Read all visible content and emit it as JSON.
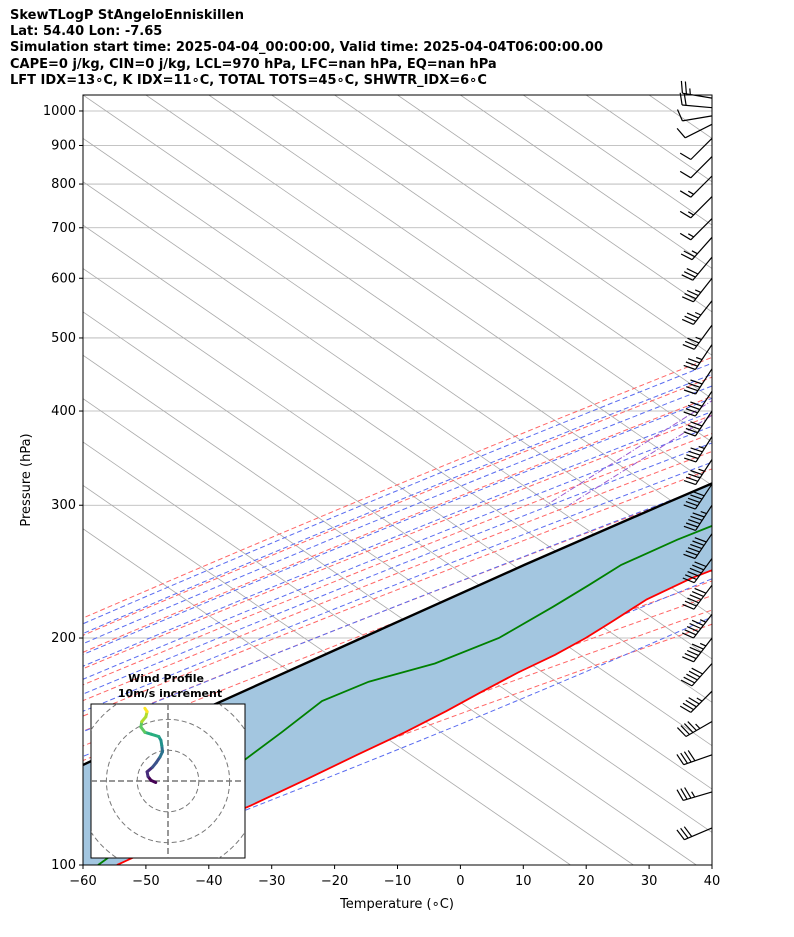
{
  "header": {
    "lines": [
      "SkewTLogP StAngeloEnniskillen",
      "Lat: 54.40   Lon: -7.65",
      "Simulation start time: 2025-04-04_00:00:00, Valid time: 2025-04-04T06:00:00.00",
      "CAPE=0 j/kg, CIN=0 j/kg, LCL=970 hPa, LFC=nan hPa, EQ=nan hPa",
      "LFT IDX=13∘C, K IDX=11∘C, TOTAL TOTS=45∘C, SHWTR_IDX=6∘C"
    ]
  },
  "chart_data": {
    "type": "skewt",
    "xlabel": "Temperature (∘C)",
    "ylabel": "Pressure (hPa)",
    "xlim": [
      -60,
      40
    ],
    "ylim": [
      1050,
      100
    ],
    "x_ticks": [
      "−60",
      "−50",
      "−40",
      "−30",
      "−20",
      "−10",
      "0",
      "10",
      "20",
      "30",
      "40"
    ],
    "y_ticks": [
      {
        "p": 100,
        "label": "100"
      },
      {
        "p": 200,
        "label": "200"
      },
      {
        "p": 300,
        "label": "300"
      },
      {
        "p": 400,
        "label": "400"
      },
      {
        "p": 500,
        "label": "500"
      },
      {
        "p": 600,
        "label": "600"
      },
      {
        "p": 700,
        "label": "700"
      },
      {
        "p": 800,
        "label": "800"
      },
      {
        "p": 900,
        "label": "900"
      },
      {
        "p": 1000,
        "label": "1000"
      }
    ],
    "colors": {
      "temperature": "#ff0000",
      "dewpoint": "#008000",
      "parcel": "#000000",
      "cape_fill": "#a3c6e0",
      "dry_adiabat": "#ff6666",
      "moist_adiabat": "#5a6cf0",
      "mixing_ratio": "#9b59d0",
      "isotherm": "#aaaaaa"
    },
    "temperature": [
      {
        "p": 1040,
        "t": 8.2
      },
      {
        "p": 1000,
        "t": 9.0
      },
      {
        "p": 970,
        "t": 10.4
      },
      {
        "p": 925,
        "t": 10.2
      },
      {
        "p": 850,
        "t": 9.2
      },
      {
        "p": 800,
        "t": 7.7
      },
      {
        "p": 750,
        "t": 6.0
      },
      {
        "p": 700,
        "t": 4.3
      },
      {
        "p": 650,
        "t": 2.9
      },
      {
        "p": 600,
        "t": 0.5
      },
      {
        "p": 550,
        "t": -2.3
      },
      {
        "p": 500,
        "t": -5.4
      },
      {
        "p": 450,
        "t": -8.8
      },
      {
        "p": 400,
        "t": -12.6
      },
      {
        "p": 350,
        "t": -17.1
      },
      {
        "p": 300,
        "t": -22.7
      },
      {
        "p": 280,
        "t": -25.8
      },
      {
        "p": 265,
        "t": -28.4
      },
      {
        "p": 250,
        "t": -27.0
      },
      {
        "p": 240,
        "t": -29.4
      },
      {
        "p": 225,
        "t": -31.6
      },
      {
        "p": 210,
        "t": -32.0
      },
      {
        "p": 200,
        "t": -32.4
      },
      {
        "p": 190,
        "t": -33.4
      },
      {
        "p": 180,
        "t": -35.2
      },
      {
        "p": 170,
        "t": -36.5
      },
      {
        "p": 160,
        "t": -37.7
      },
      {
        "p": 150,
        "t": -39.4
      },
      {
        "p": 140,
        "t": -41.8
      },
      {
        "p": 130,
        "t": -44.2
      },
      {
        "p": 120,
        "t": -47.0
      },
      {
        "p": 110,
        "t": -51.0
      },
      {
        "p": 100,
        "t": -54.6
      }
    ],
    "dewpoint": [
      {
        "p": 1010,
        "t": 5.8
      },
      {
        "p": 1000,
        "t": 6.6
      },
      {
        "p": 975,
        "t": 8.1
      },
      {
        "p": 950,
        "t": 9.2
      },
      {
        "p": 925,
        "t": 9.6
      },
      {
        "p": 900,
        "t": 8.8
      },
      {
        "p": 860,
        "t": 5.4
      },
      {
        "p": 820,
        "t": 0.1
      },
      {
        "p": 775,
        "t": -3.5
      },
      {
        "p": 700,
        "t": -9.2
      },
      {
        "p": 650,
        "t": -14.4
      },
      {
        "p": 600,
        "t": -11.5
      },
      {
        "p": 550,
        "t": -5.7
      },
      {
        "p": 500,
        "t": -9.5
      },
      {
        "p": 450,
        "t": -14.5
      },
      {
        "p": 400,
        "t": -19.4
      },
      {
        "p": 350,
        "t": -26.2
      },
      {
        "p": 300,
        "t": -34.7
      },
      {
        "p": 270,
        "t": -40.5
      },
      {
        "p": 250,
        "t": -43.6
      },
      {
        "p": 235,
        "t": -44.1
      },
      {
        "p": 220,
        "t": -44.8
      },
      {
        "p": 200,
        "t": -46.2
      },
      {
        "p": 185,
        "t": -50.5
      },
      {
        "p": 175,
        "t": -56.8
      },
      {
        "p": 165,
        "t": -59.8
      },
      {
        "p": 150,
        "t": -59.0
      },
      {
        "p": 130,
        "t": -58.2
      },
      {
        "p": 115,
        "t": -58.0
      },
      {
        "p": 100,
        "t": -57.6
      }
    ],
    "parcel": [
      {
        "p": 1040,
        "t": 8.2
      },
      {
        "p": 1000,
        "t": 5.4
      },
      {
        "p": 950,
        "t": 2.7
      },
      {
        "p": 900,
        "t": 0.3
      },
      {
        "p": 850,
        "t": -2.3
      },
      {
        "p": 800,
        "t": -5.0
      },
      {
        "p": 750,
        "t": -7.9
      },
      {
        "p": 700,
        "t": -11.1
      },
      {
        "p": 650,
        "t": -14.6
      },
      {
        "p": 600,
        "t": -18.3
      },
      {
        "p": 550,
        "t": -22.4
      },
      {
        "p": 500,
        "t": -27.0
      },
      {
        "p": 450,
        "t": -32.1
      },
      {
        "p": 400,
        "t": -37.7
      },
      {
        "p": 350,
        "t": -44.0
      },
      {
        "p": 300,
        "t": -51.0
      },
      {
        "p": 250,
        "t": -59.0
      },
      {
        "p": 200,
        "t": -68.0
      },
      {
        "p": 150,
        "t": -79.5
      },
      {
        "p": 120,
        "t": -87.5
      },
      {
        "p": 100,
        "t": -94.5
      }
    ],
    "dry_adiabats_theta_c": [
      -30,
      -20,
      -10,
      0,
      10,
      20,
      30,
      40,
      50,
      60,
      70,
      80,
      90,
      100,
      110,
      120,
      130
    ],
    "moist_adiabats_tstart_c": [
      -25,
      -20,
      -15,
      -10,
      -5,
      0,
      5,
      10,
      15,
      20,
      25,
      30,
      35
    ],
    "mixing_ratio_tstart_c": [
      -60,
      -56
    ],
    "isotherms_c": [
      -160,
      -150,
      -140,
      -130,
      -120,
      -110,
      -100,
      -90,
      -80,
      -70,
      -60,
      -50,
      -40,
      -30,
      -20,
      -10,
      0,
      10,
      20,
      30,
      40
    ],
    "wind_barbs": [
      {
        "p": 1040,
        "u": 12,
        "v": -2
      },
      {
        "p": 1010,
        "u": 11,
        "v": -1
      },
      {
        "p": 985,
        "u": 6,
        "v": 1
      },
      {
        "p": 960,
        "u": 4,
        "v": 2
      },
      {
        "p": 920,
        "u": 3,
        "v": 3
      },
      {
        "p": 870,
        "u": 4,
        "v": 4
      },
      {
        "p": 820,
        "u": 5,
        "v": 5
      },
      {
        "p": 770,
        "u": 5,
        "v": 5
      },
      {
        "p": 720,
        "u": 6,
        "v": 6
      },
      {
        "p": 680,
        "u": 8,
        "v": 9
      },
      {
        "p": 640,
        "u": 10,
        "v": 12
      },
      {
        "p": 600,
        "u": 11,
        "v": 14
      },
      {
        "p": 560,
        "u": 11,
        "v": 14
      },
      {
        "p": 520,
        "u": 11,
        "v": 15
      },
      {
        "p": 490,
        "u": 10,
        "v": 15
      },
      {
        "p": 455,
        "u": 11,
        "v": 17
      },
      {
        "p": 425,
        "u": 12,
        "v": 18
      },
      {
        "p": 400,
        "u": 12,
        "v": 18
      },
      {
        "p": 370,
        "u": 12,
        "v": 19
      },
      {
        "p": 345,
        "u": 13,
        "v": 20
      },
      {
        "p": 320,
        "u": 14,
        "v": 21
      },
      {
        "p": 300,
        "u": 15,
        "v": 23
      },
      {
        "p": 275,
        "u": 17,
        "v": 25
      },
      {
        "p": 255,
        "u": 19,
        "v": 26
      },
      {
        "p": 235,
        "u": 18,
        "v": 24
      },
      {
        "p": 215,
        "u": 18,
        "v": 23
      },
      {
        "p": 200,
        "u": 17,
        "v": 22
      },
      {
        "p": 185,
        "u": 17,
        "v": 19
      },
      {
        "p": 170,
        "u": 17,
        "v": 17
      },
      {
        "p": 155,
        "u": 19,
        "v": 11
      },
      {
        "p": 140,
        "u": 20,
        "v": 7
      },
      {
        "p": 125,
        "u": 17,
        "v": 5
      },
      {
        "p": 112,
        "u": 14,
        "v": 6
      }
    ],
    "hodograph": {
      "title": "Wind Profile",
      "subtitle": "10m/s increment",
      "ring_increment_ms": 10,
      "max_ms": 25,
      "points": [
        {
          "u": -4,
          "v": -0.5
        },
        {
          "u": -5.5,
          "v": 0.2
        },
        {
          "u": -6.5,
          "v": 1.5
        },
        {
          "u": -6.8,
          "v": 3
        },
        {
          "u": -5,
          "v": 4.5
        },
        {
          "u": -3.8,
          "v": 6
        },
        {
          "u": -2.6,
          "v": 7.8
        },
        {
          "u": -1.8,
          "v": 9.5
        },
        {
          "u": -2,
          "v": 11.5
        },
        {
          "u": -2.3,
          "v": 13.2
        },
        {
          "u": -3,
          "v": 14.4
        },
        {
          "u": -5.5,
          "v": 15.2
        },
        {
          "u": -7.5,
          "v": 15.8
        },
        {
          "u": -8.8,
          "v": 17.5
        },
        {
          "u": -8.5,
          "v": 19.3
        },
        {
          "u": -7.2,
          "v": 20.8
        },
        {
          "u": -6.8,
          "v": 22.5
        },
        {
          "u": -7.5,
          "v": 23.6
        }
      ]
    }
  }
}
